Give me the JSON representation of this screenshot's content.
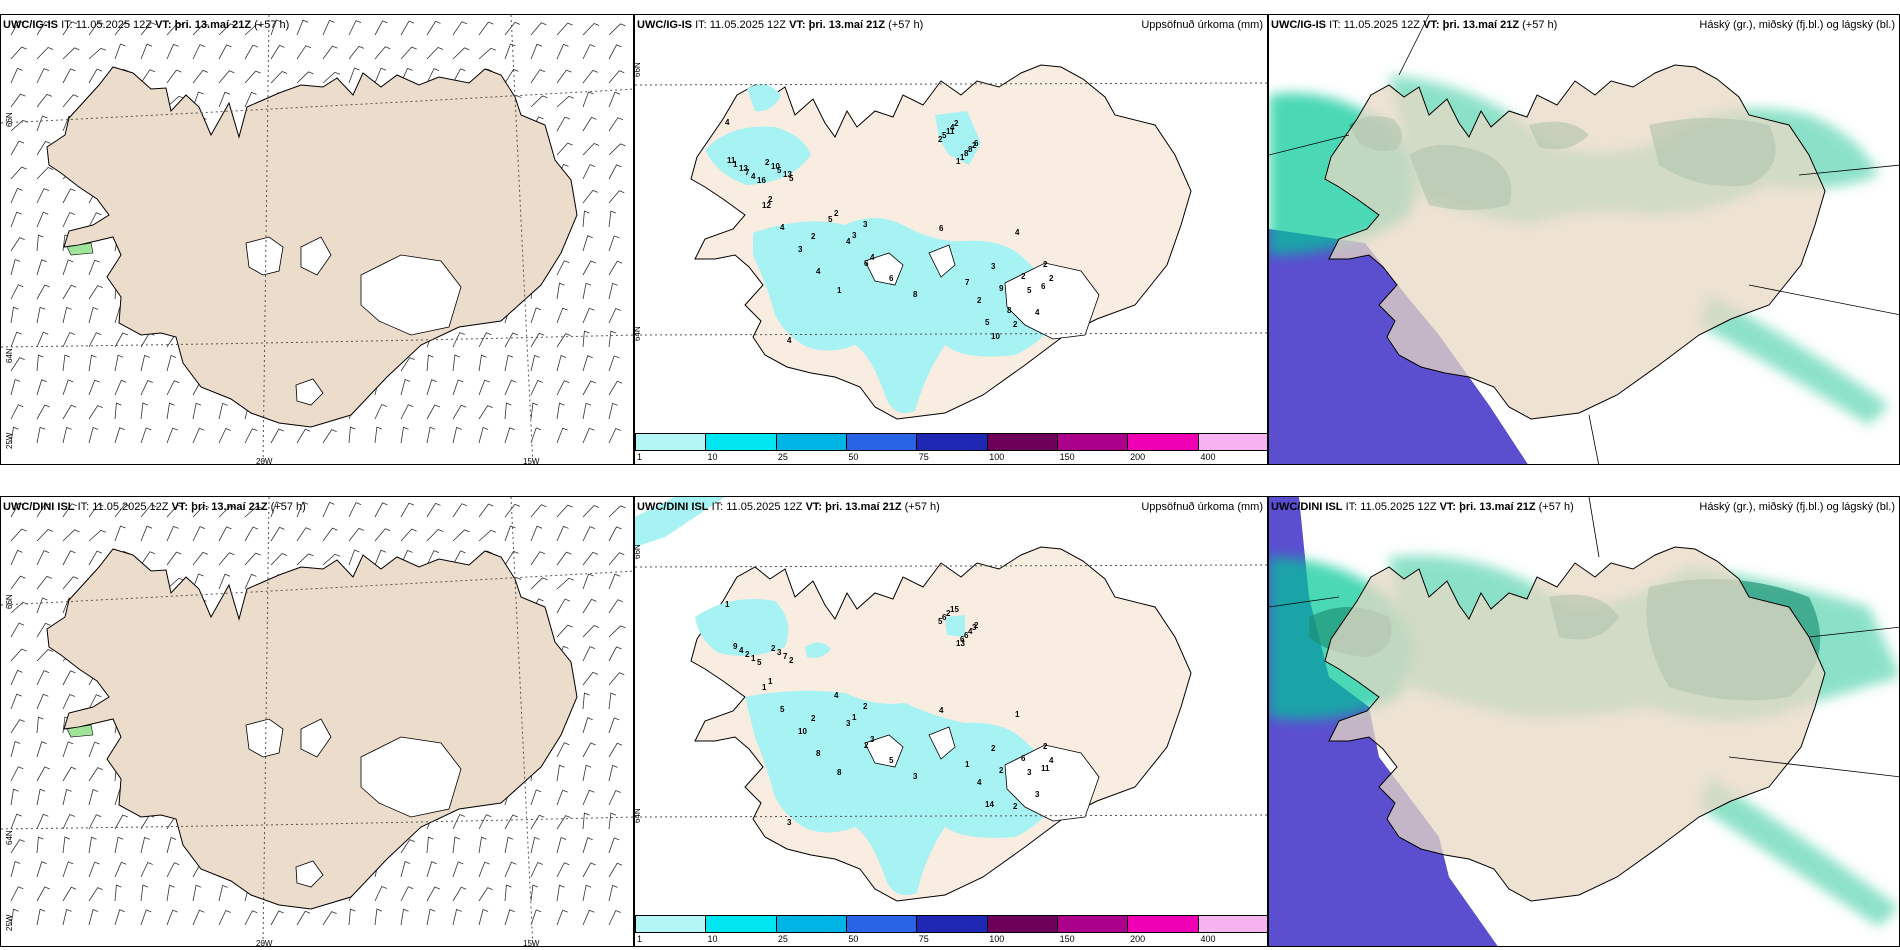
{
  "panels": {
    "top_wind": {
      "model": "UWC/IG-IS",
      "it_label": "IT:",
      "it_value": "11.05.2025 12Z",
      "vt_label": "VT:",
      "vt_value": "þri. 13.maí 21Z",
      "lead": "(+57 h)"
    },
    "top_precip": {
      "model": "UWC/IG-IS",
      "it_label": "IT:",
      "it_value": "11.05.2025 12Z",
      "vt_label": "VT:",
      "vt_value": "þri. 13.maí 21Z",
      "lead": "(+57 h)",
      "title": "Uppsöfnuð úrkoma (mm)"
    },
    "top_cloud": {
      "model": "UWC/IG-IS",
      "it_label": "IT:",
      "it_value": "11.05.2025 12Z",
      "vt_label": "VT:",
      "vt_value": "þri. 13.maí 21Z",
      "lead": "(+57 h)",
      "title": "Háský (gr.), miðský (fj.bl.) og lágský (bl.)"
    },
    "bottom_wind": {
      "model": "UWC/DINI ISL",
      "it_label": "IT:",
      "it_value": "11.05.2025 12Z",
      "vt_label": "VT:",
      "vt_value": "þri. 13.maí 21Z",
      "lead": "(+57 h)"
    },
    "bottom_precip": {
      "model": "UWC/DINI ISL",
      "it_label": "IT:",
      "it_value": "11.05.2025 12Z",
      "vt_label": "VT:",
      "vt_value": "þri. 13.maí 21Z",
      "lead": "(+57 h)",
      "title": "Uppsöfnuð úrkoma (mm)"
    },
    "bottom_cloud": {
      "model": "UWC/DINI ISL",
      "it_label": "IT:",
      "it_value": "11.05.2025 12Z",
      "vt_label": "VT:",
      "vt_value": "þri. 13.maí 21Z",
      "lead": "(+57 h)",
      "title": "Háský (gr.), miðský (fj.bl.) og lágský (bl.)"
    }
  },
  "grid_labels": {
    "lat66": "66N",
    "lat64": "64N",
    "lon25": "25W",
    "lon20": "20W",
    "lon15": "15W",
    "lat66_right": "66N",
    "lat64_right": "64N"
  },
  "colorbar": {
    "ticks": [
      "1",
      "10",
      "25",
      "50",
      "75",
      "100",
      "150",
      "200",
      "400"
    ],
    "colors": [
      "#b4f5f5",
      "#00e6f0",
      "#00b4e6",
      "#2864e6",
      "#1e28b4",
      "#6e005a",
      "#aa008c",
      "#f000b4",
      "#f5b4f0"
    ]
  },
  "precip_labels_top": [
    "4",
    "2",
    "2",
    "6",
    "5",
    "16",
    "4",
    "8",
    "1",
    "2",
    "5",
    "3",
    "4",
    "2",
    "3",
    "4",
    "2",
    "1",
    "1",
    "2",
    "13",
    "4",
    "6",
    "5",
    "4",
    "7",
    "3",
    "6",
    "8",
    "2",
    "5",
    "4",
    "3",
    "11",
    "9",
    "13",
    "12",
    "7",
    "8",
    "2",
    "10",
    "6",
    "4",
    "4",
    "2",
    "1",
    "4",
    "6",
    "2",
    "5",
    "2",
    "5",
    "10",
    "2",
    "8",
    "11"
  ],
  "precip_labels_bottom": [
    "1",
    "1",
    "2",
    "2",
    "3",
    "5",
    "3",
    "3",
    "13",
    "4",
    "2",
    "1",
    "1",
    "5",
    "2",
    "1",
    "4",
    "8",
    "6",
    "2",
    "7",
    "8",
    "4",
    "6",
    "3",
    "2",
    "10",
    "11",
    "6",
    "4",
    "3",
    "5",
    "2",
    "2",
    "2",
    "4",
    "1",
    "1",
    "4",
    "6",
    "2",
    "2",
    "3",
    "15",
    "2",
    "9",
    "3",
    "5",
    "3",
    "14"
  ]
}
